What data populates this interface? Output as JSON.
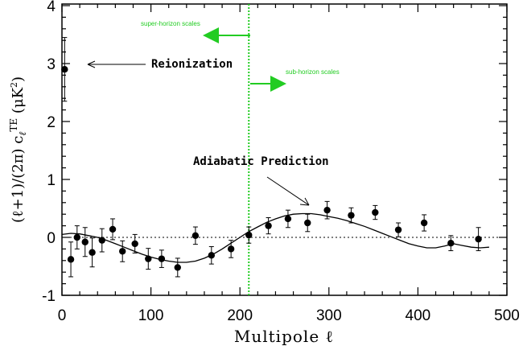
{
  "chart_data": {
    "type": "scatter",
    "xlabel": "Multipole ℓ",
    "ylabel": "(ℓ+1)/(2π) c",
    "ylabel_sub": "ℓ",
    "ylabel_sup": "TE",
    "ylabel_units": " (μK",
    "ylabel_units_sup": "2",
    "ylabel_units_close": ")",
    "xlim": [
      0,
      500
    ],
    "ylim": [
      -1.1,
      4
    ],
    "xticks": [
      0,
      100,
      200,
      300,
      400,
      500
    ],
    "yticks": [
      -1,
      0,
      1,
      2,
      3,
      4
    ],
    "grid": false,
    "series": [
      {
        "name": "",
        "x": [
          3,
          10,
          17,
          26,
          34,
          45,
          57,
          68,
          82,
          97,
          112,
          130,
          150,
          168,
          190,
          210,
          232,
          254,
          276,
          298,
          325,
          352,
          378,
          407,
          437,
          468
        ],
        "y": [
          2.9,
          -0.38,
          0.0,
          -0.08,
          -0.26,
          -0.05,
          0.14,
          -0.24,
          -0.11,
          -0.37,
          -0.37,
          -0.52,
          0.03,
          -0.31,
          -0.2,
          0.04,
          0.2,
          0.32,
          0.25,
          0.47,
          0.38,
          0.43,
          0.13,
          0.25,
          -0.1,
          -0.03
        ],
        "err": [
          0.55,
          0.3,
          0.2,
          0.25,
          0.25,
          0.2,
          0.18,
          0.18,
          0.16,
          0.18,
          0.15,
          0.16,
          0.15,
          0.15,
          0.15,
          0.14,
          0.14,
          0.15,
          0.15,
          0.15,
          0.13,
          0.12,
          0.12,
          0.14,
          0.13,
          0.2
        ]
      },
      {
        "name": "",
        "type": "line",
        "x": [
          0,
          10,
          20,
          30,
          40,
          50,
          60,
          70,
          80,
          90,
          100,
          110,
          120,
          130,
          140,
          150,
          160,
          170,
          180,
          190,
          200,
          210,
          220,
          230,
          240,
          250,
          260,
          270,
          280,
          290,
          300,
          310,
          320,
          330,
          340,
          350,
          360,
          370,
          380,
          390,
          400,
          410,
          420,
          430,
          440,
          450,
          460,
          470,
          480
        ],
        "y": [
          0.05,
          0.07,
          0.06,
          0.03,
          0.0,
          -0.05,
          -0.11,
          -0.17,
          -0.23,
          -0.29,
          -0.34,
          -0.38,
          -0.41,
          -0.43,
          -0.43,
          -0.41,
          -0.36,
          -0.29,
          -0.2,
          -0.1,
          0.0,
          0.1,
          0.18,
          0.26,
          0.32,
          0.37,
          0.4,
          0.41,
          0.41,
          0.39,
          0.36,
          0.33,
          0.29,
          0.24,
          0.19,
          0.13,
          0.07,
          0.01,
          -0.05,
          -0.11,
          -0.15,
          -0.18,
          -0.18,
          -0.15,
          -0.11,
          -0.14,
          -0.17,
          -0.18,
          -0.17
        ]
      }
    ],
    "reference_lines": {
      "horizontal_y": 0,
      "vertical_x": 210,
      "vertical_color": "#22cc22"
    },
    "annotations": {
      "reionization": "Reionization",
      "adiabatic": "Adiabatic Prediction",
      "super_horizon": "super-horizon scales",
      "sub_horizon": "sub-horizon scales"
    },
    "colors": {
      "points": "#000000",
      "curve": "#000000",
      "green": "#22cc22"
    }
  }
}
